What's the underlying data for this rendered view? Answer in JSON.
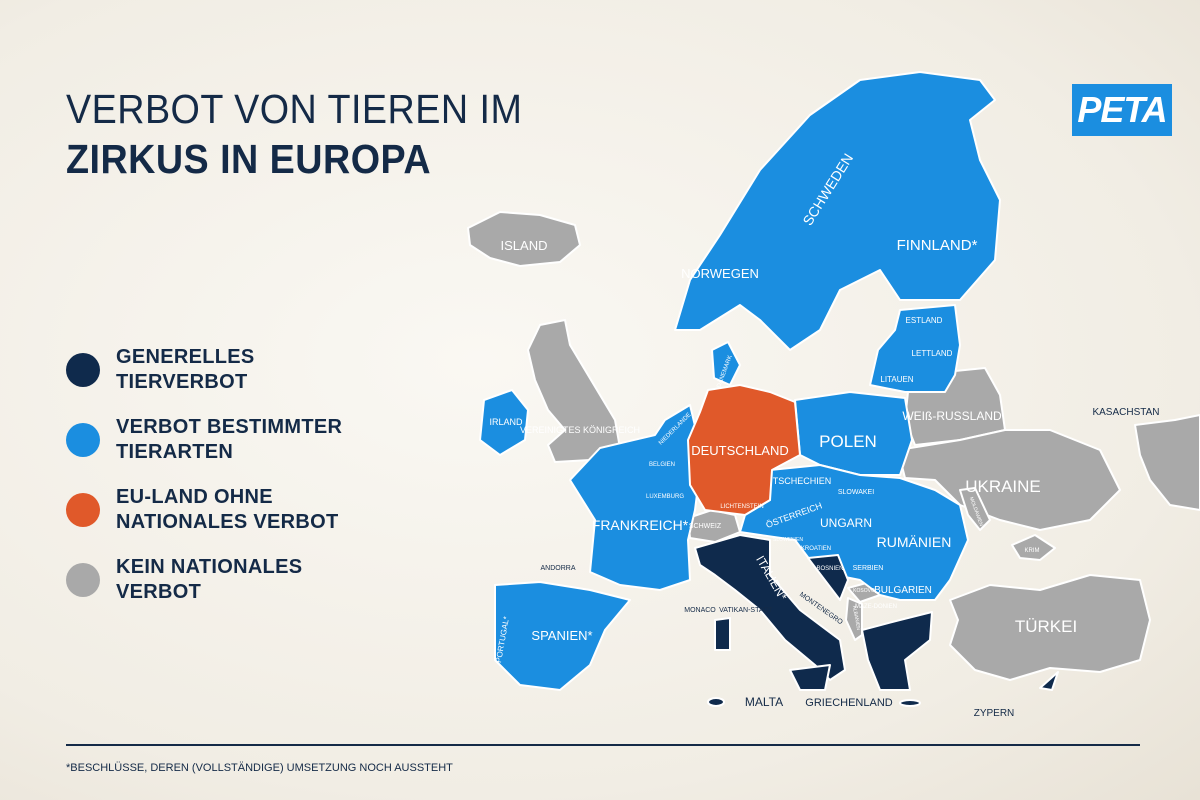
{
  "title": {
    "line1": "VERBOT VON TIEREN IM",
    "line2": "ZIRKUS IN EUROPA"
  },
  "logo": "PETA",
  "colors": {
    "general_ban": "#0f2a4c",
    "partial_ban": "#1b8ee0",
    "eu_no_ban": "#e0592a",
    "no_ban": "#a9a9a9",
    "background": "#f2eee6"
  },
  "legend": [
    {
      "label": "GENERELLES TIERVERBOT",
      "color": "#0f2a4c"
    },
    {
      "label": "VERBOT BESTIMMTER TIERARTEN",
      "color": "#1b8ee0"
    },
    {
      "label": "EU-LAND OHNE NATIONALES VERBOT",
      "color": "#e0592a"
    },
    {
      "label": "KEIN NATIONALES VERBOT",
      "color": "#a9a9a9"
    }
  ],
  "countries": {
    "island": {
      "label": "ISLAND",
      "status": "no_ban"
    },
    "norwegen": {
      "label": "NORWEGEN",
      "status": "partial_ban"
    },
    "schweden": {
      "label": "SCHWEDEN",
      "status": "partial_ban"
    },
    "finnland": {
      "label": "FINNLAND*",
      "status": "partial_ban"
    },
    "estland": {
      "label": "ESTLAND",
      "status": "partial_ban"
    },
    "lettland": {
      "label": "LETTLAND",
      "status": "partial_ban"
    },
    "litauen": {
      "label": "LITAUEN",
      "status": "partial_ban"
    },
    "daenemark": {
      "label": "DÄNEMARK",
      "status": "partial_ban"
    },
    "irland": {
      "label": "IRLAND",
      "status": "partial_ban"
    },
    "uk": {
      "label": "VEREINIGTES KÖNIGREICH",
      "status": "no_ban"
    },
    "niederlande": {
      "label": "NIEDERLANDE",
      "status": "partial_ban"
    },
    "belgien": {
      "label": "BELGIEN",
      "status": "partial_ban"
    },
    "luxemburg": {
      "label": "LUXEMBURG",
      "status": "partial_ban"
    },
    "deutschland": {
      "label": "DEUTSCHLAND",
      "status": "eu_no_ban"
    },
    "lichtenstein": {
      "label": "LICHTENSTEIN",
      "status": "partial_ban"
    },
    "polen": {
      "label": "POLEN",
      "status": "partial_ban"
    },
    "weissrussland": {
      "label": "WEIß-RUSSLAND",
      "status": "no_ban"
    },
    "ukraine": {
      "label": "UKRAINE",
      "status": "no_ban"
    },
    "moldawien": {
      "label": "MOLDAWIEN",
      "status": "no_ban"
    },
    "krim": {
      "label": "KRIM",
      "status": "no_ban"
    },
    "kasachstan": {
      "label": "KASACHSTAN",
      "status": "no_ban"
    },
    "tschechien": {
      "label": "TSCHECHIEN",
      "status": "partial_ban"
    },
    "slowakei": {
      "label": "SLOWAKEI",
      "status": "partial_ban"
    },
    "oesterreich": {
      "label": "ÖSTERREICH",
      "status": "partial_ban"
    },
    "ungarn": {
      "label": "UNGARN",
      "status": "partial_ban"
    },
    "rumaenien": {
      "label": "RUMÄNIEN",
      "status": "partial_ban"
    },
    "frankreich": {
      "label": "FRANKREICH*",
      "status": "partial_ban"
    },
    "schweiz": {
      "label": "SCHWEIZ",
      "status": "no_ban"
    },
    "slowenien": {
      "label": "SLOWENIEN",
      "status": "partial_ban"
    },
    "kroatien": {
      "label": "KROATIEN",
      "status": "partial_ban"
    },
    "bosnien": {
      "label": "BOSNIEN",
      "status": "general_ban"
    },
    "serbien": {
      "label": "SERBIEN",
      "status": "partial_ban"
    },
    "kosovo": {
      "label": "KOSOVO",
      "status": "no_ban"
    },
    "albanien": {
      "label": "ALBANIEN",
      "status": "no_ban"
    },
    "mazedonien": {
      "label": "MAZE-DONIEN",
      "status": "partial_ban"
    },
    "montenegro": {
      "label": "MONTENEGRO",
      "status": "no_ban"
    },
    "bulgarien": {
      "label": "BULGARIEN",
      "status": "partial_ban"
    },
    "italien": {
      "label": "ITALIEN*",
      "status": "general_ban"
    },
    "andorra": {
      "label": "ANDORRA",
      "status": "partial_ban"
    },
    "monaco": {
      "label": "MONACO",
      "status": "partial_ban"
    },
    "vatikanstadt": {
      "label": "VATIKAN-STADT",
      "status": "no_ban"
    },
    "portugal": {
      "label": "PORTUGAL*",
      "status": "partial_ban"
    },
    "spanien": {
      "label": "SPANIEN*",
      "status": "partial_ban"
    },
    "malta": {
      "label": "MALTA",
      "status": "general_ban"
    },
    "griechenland": {
      "label": "GRIECHENLAND",
      "status": "general_ban"
    },
    "tuerkei": {
      "label": "TÜRKEI",
      "status": "no_ban"
    },
    "zypern": {
      "label": "ZYPERN",
      "status": "general_ban"
    }
  },
  "footnote": "*BESCHLÜSSE, DEREN (VOLLSTÄNDIGE) UMSETZUNG NOCH AUSSTEHT"
}
